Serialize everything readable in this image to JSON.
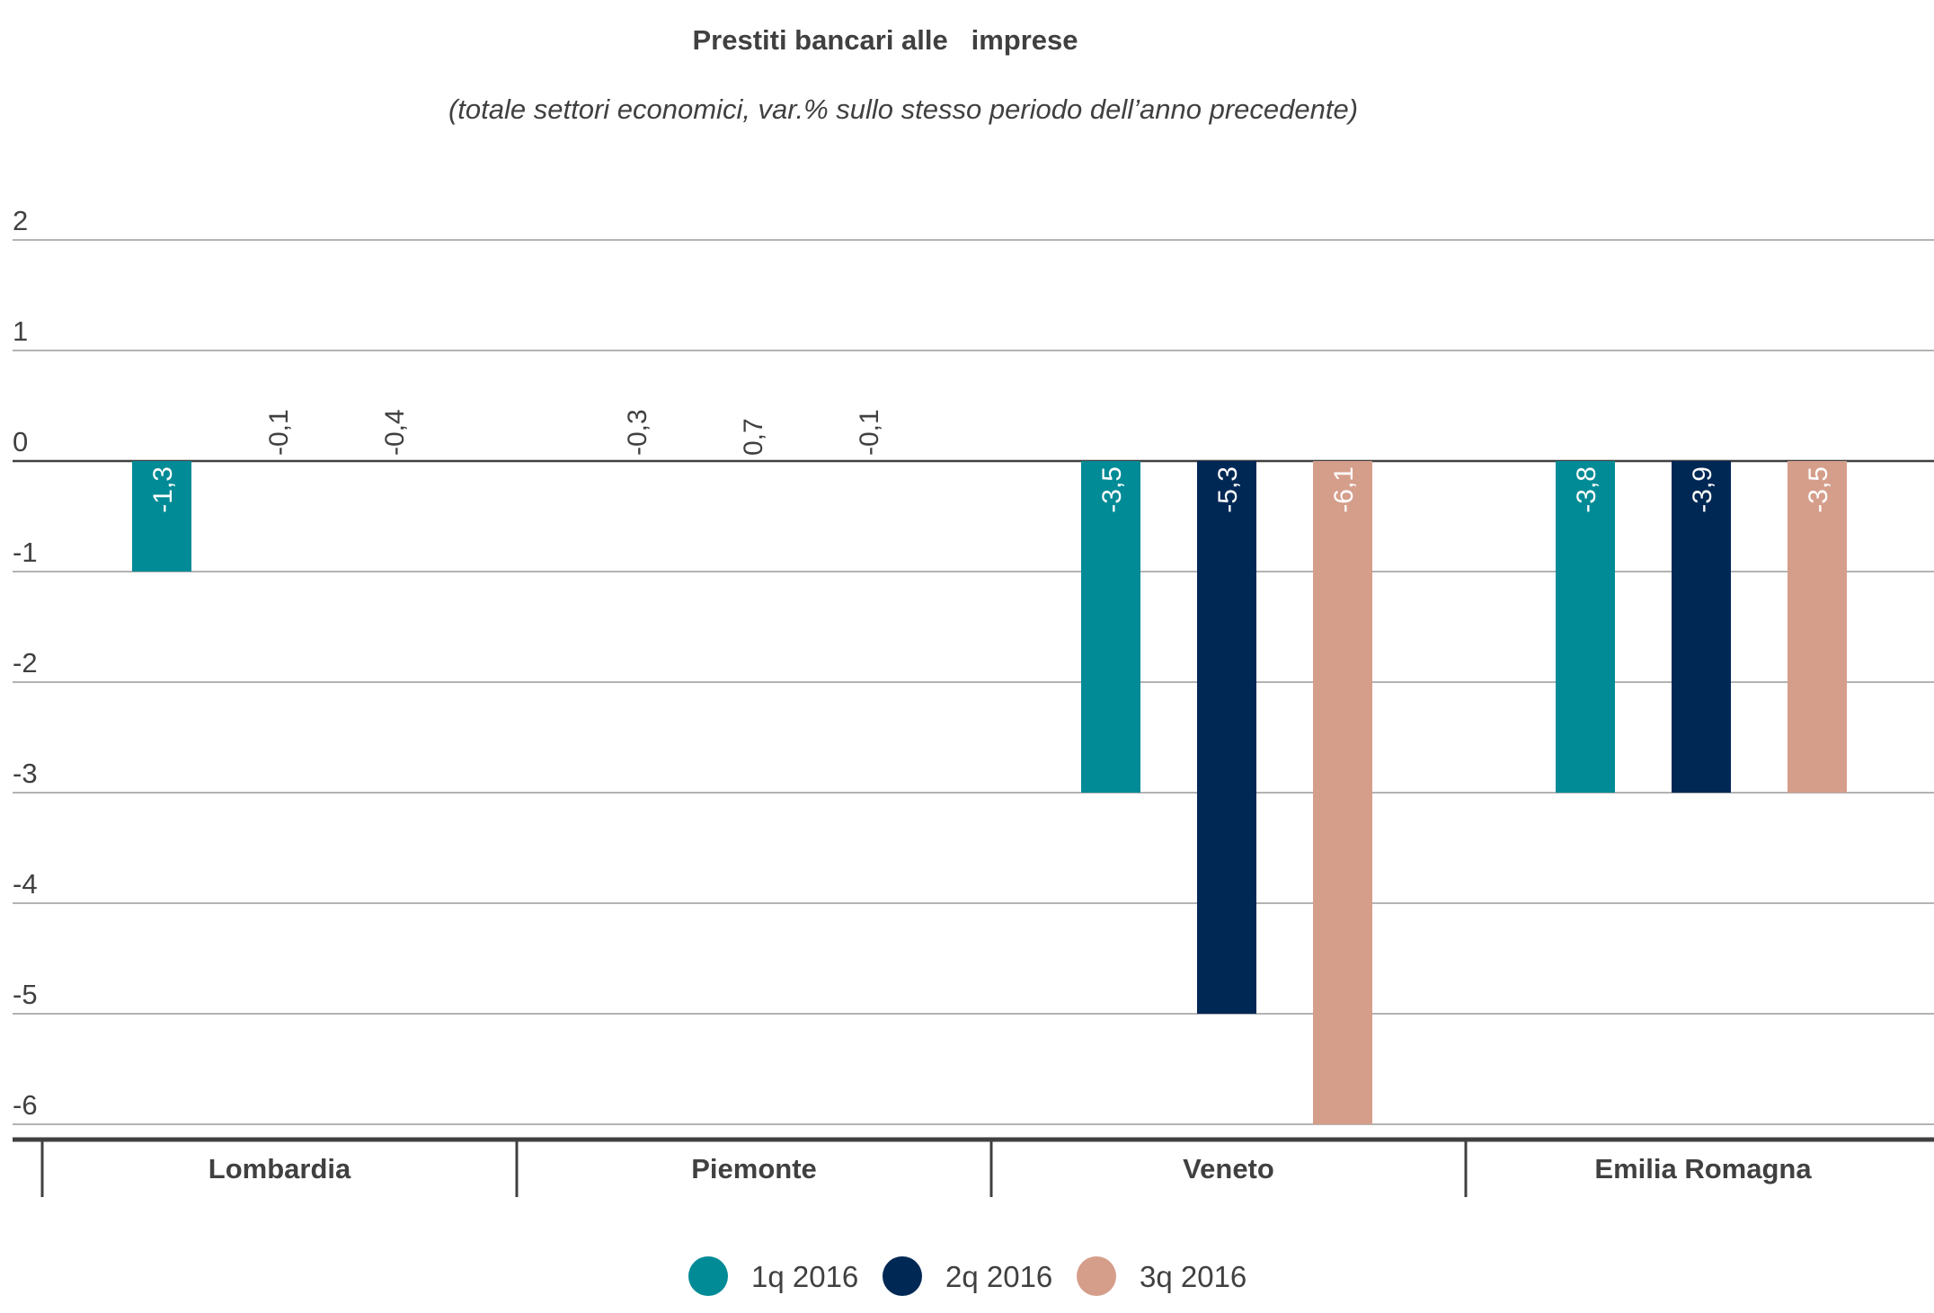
{
  "chart_data": {
    "type": "bar",
    "title": "Prestiti bancari alle   imprese",
    "subtitle": "(totale settori economici, var.% sullo stesso periodo dell’anno precedente)",
    "categories": [
      "Lombardia",
      "Piemonte",
      "Veneto",
      "Emilia Romagna"
    ],
    "ylim": [
      -6,
      2
    ],
    "yticks": [
      "2",
      "1",
      "0",
      "-1",
      "-2",
      "-3",
      "-4",
      "-5",
      "-6"
    ],
    "grid": true,
    "legend_position": "bottom",
    "series": [
      {
        "name": "1q 2016",
        "color": "#008b96",
        "values": [
          -1.3,
          -0.3,
          -3.5,
          -3.8
        ],
        "labels": [
          "-1,3",
          "-0,3",
          "-3,5",
          "-3,8"
        ]
      },
      {
        "name": "2q 2016",
        "color": "#002855",
        "values": [
          -0.1,
          0.7,
          -5.3,
          -3.9
        ],
        "labels": [
          "-0,1",
          "0,7",
          "-5,3",
          "-3,9"
        ]
      },
      {
        "name": "3q 2016",
        "color": "#d59e8b",
        "values": [
          -0.4,
          -0.1,
          -6.1,
          -3.5
        ],
        "labels": [
          "-0,4",
          "-0,1",
          "-6,1",
          "-3,5"
        ]
      }
    ]
  }
}
